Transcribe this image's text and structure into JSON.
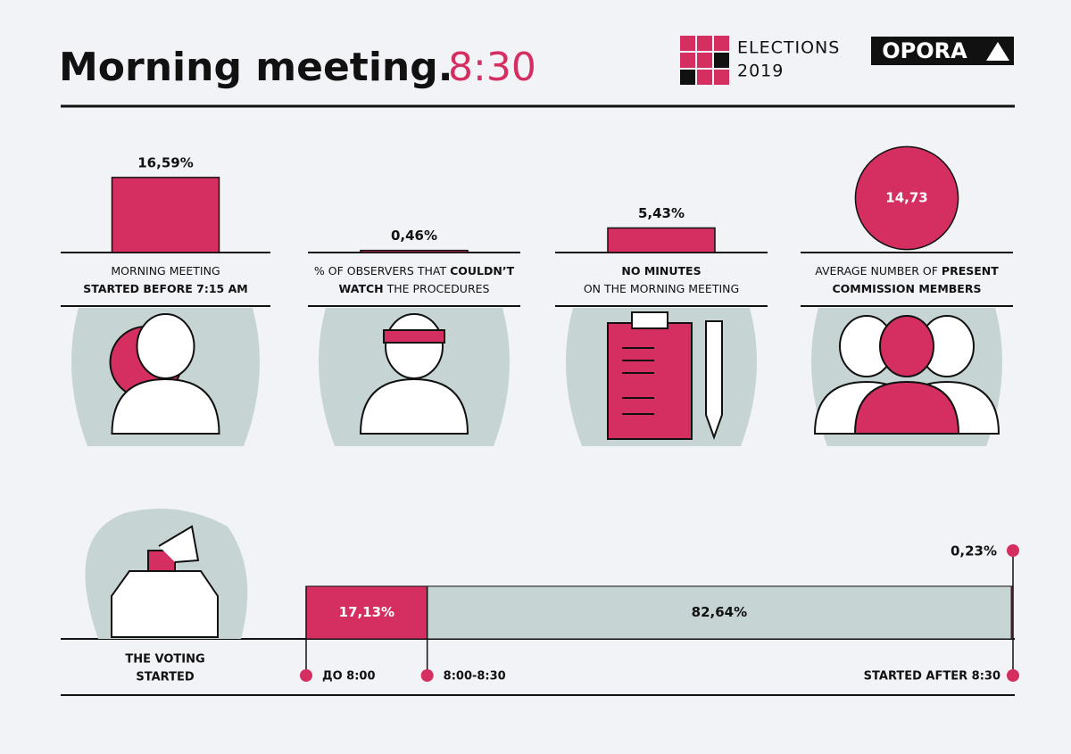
{
  "header": {
    "title": "Morning meeting.",
    "time": "8:30",
    "logo_lines": [
      "ELECTIONS",
      "2019"
    ],
    "brand": "OPORA"
  },
  "stats": [
    {
      "value": 16.59,
      "value_label": "16,59%",
      "shape": "bar",
      "lines": [
        [
          {
            "text": "MORNING MEETING",
            "bold": false
          }
        ],
        [
          {
            "text": "STARTED BEFORE 7:15 AM",
            "bold": true
          }
        ]
      ]
    },
    {
      "value": 0.46,
      "value_label": "0,46%",
      "shape": "bar",
      "lines": [
        [
          {
            "text": "% OF OBSERVERS THAT ",
            "bold": false
          },
          {
            "text": "COULDN’T",
            "bold": true
          }
        ],
        [
          {
            "text": "WATCH",
            "bold": true
          },
          {
            "text": " THE PROCEDURES",
            "bold": false
          }
        ]
      ]
    },
    {
      "value": 5.43,
      "value_label": "5,43%",
      "shape": "bar",
      "lines": [
        [
          {
            "text": "NO MINUTES",
            "bold": true
          }
        ],
        [
          {
            "text": "ON THE MORNING MEETING",
            "bold": false
          }
        ]
      ]
    },
    {
      "value": 14.73,
      "value_label": "14,73",
      "shape": "circle",
      "lines": [
        [
          {
            "text": "AVERAGE NUMBER OF ",
            "bold": false
          },
          {
            "text": "PRESENT",
            "bold": true
          }
        ],
        [
          {
            "text": "COMMISSION MEMBERS",
            "bold": true
          }
        ]
      ]
    }
  ],
  "voting": {
    "lines": [
      "THE VOTING",
      "STARTED"
    ],
    "segments": [
      {
        "value": 17.13,
        "value_label": "17,13%",
        "range": "ДО 8:00"
      },
      {
        "value": 82.64,
        "value_label": "82,64%",
        "range": "8:00-8:30"
      },
      {
        "value": 0.23,
        "value_label": "0,23%",
        "range": "STARTED AFTER 8:30"
      }
    ]
  }
}
